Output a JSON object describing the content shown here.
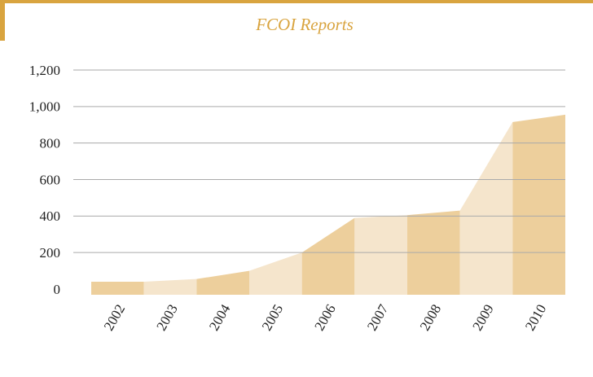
{
  "chart_data": {
    "type": "area",
    "title": "FCOI Reports",
    "categories": [
      "2002",
      "2003",
      "2004",
      "2005",
      "2006",
      "2007",
      "2008",
      "2009",
      "2010"
    ],
    "values": [
      40,
      55,
      100,
      200,
      390,
      405,
      430,
      915,
      955
    ],
    "colors": [
      "#edcf9c",
      "#f5e5cc"
    ],
    "ylim": [
      0,
      1200
    ],
    "yticks": [
      0,
      200,
      400,
      600,
      800,
      {
        "value": 1000,
        "label": "1,000"
      },
      {
        "value": 1200,
        "label": "1,200"
      }
    ],
    "grid": true
  }
}
